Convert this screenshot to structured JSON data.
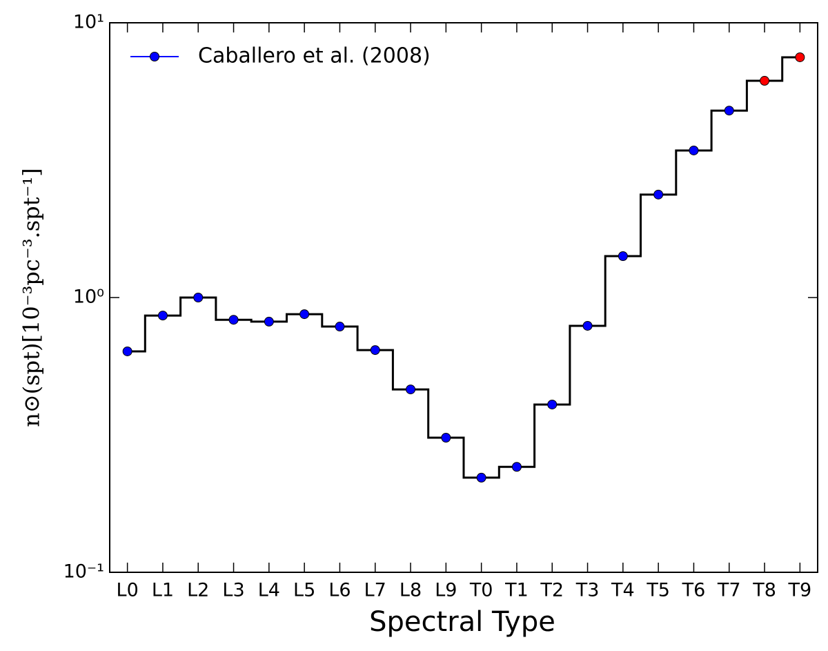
{
  "chart_data": {
    "type": "step",
    "xlabel": "Spectral Type",
    "ylabel": "n⊙(spt)[10⁻³pc⁻³.spt⁻¹]",
    "categories": [
      "L0",
      "L1",
      "L2",
      "L3",
      "L4",
      "L5",
      "L6",
      "L7",
      "L8",
      "L9",
      "T0",
      "T1",
      "T2",
      "T3",
      "T4",
      "T5",
      "T6",
      "T7",
      "T8",
      "T9"
    ],
    "series": [
      {
        "name": "Caballero et al. (2008)",
        "color": "#0000ff",
        "values": [
          0.637,
          0.86,
          1.0,
          0.83,
          0.817,
          0.87,
          0.784,
          0.644,
          0.463,
          0.309,
          0.221,
          0.242,
          0.408,
          0.789,
          1.415,
          2.37,
          3.43,
          4.79,
          6.15,
          7.49
        ],
        "point_colors": [
          "#0000ff",
          "#0000ff",
          "#0000ff",
          "#0000ff",
          "#0000ff",
          "#0000ff",
          "#0000ff",
          "#0000ff",
          "#0000ff",
          "#0000ff",
          "#0000ff",
          "#0000ff",
          "#0000ff",
          "#0000ff",
          "#0000ff",
          "#0000ff",
          "#0000ff",
          "#0000ff",
          "#ff0000",
          "#ff0000"
        ]
      }
    ],
    "step_color": "#000000",
    "log_y": true,
    "ylim": [
      0.1,
      10
    ],
    "yticks": [
      {
        "value": 0.1,
        "label": "10⁻¹"
      },
      {
        "value": 1,
        "label": "10⁰"
      },
      {
        "value": 10,
        "label": "10¹"
      }
    ],
    "legend": "upper left"
  }
}
